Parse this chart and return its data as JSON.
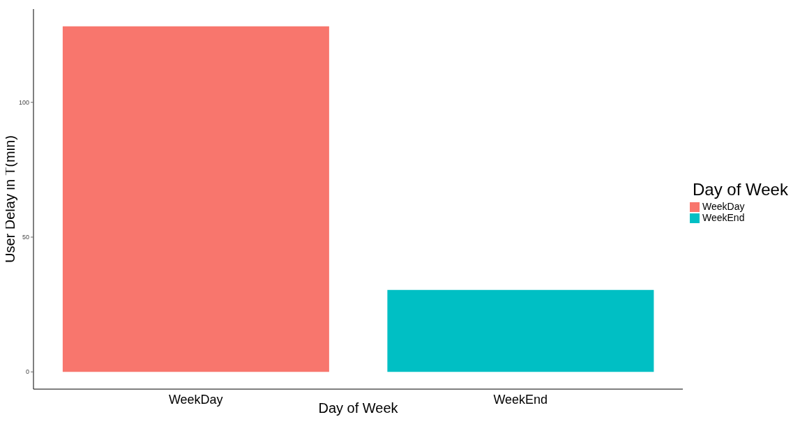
{
  "chart_data": {
    "type": "bar",
    "categories": [
      "WeekDay",
      "WeekEnd"
    ],
    "stacked": true,
    "series": [
      {
        "name": "WeekDay",
        "color": "#f8766d",
        "values": [
          128.2,
          null
        ]
      },
      {
        "name": "WeekEnd",
        "color": "#00bfc4",
        "values": [
          null,
          30.4
        ]
      }
    ],
    "xlabel": "Day of Week",
    "ylabel": "User Delay in T(min)",
    "legend_title": "Day of Week",
    "legend": "right",
    "ylim": [
      -6.4,
      134.6
    ],
    "yticks": [
      0,
      50,
      100
    ],
    "grid": false
  }
}
